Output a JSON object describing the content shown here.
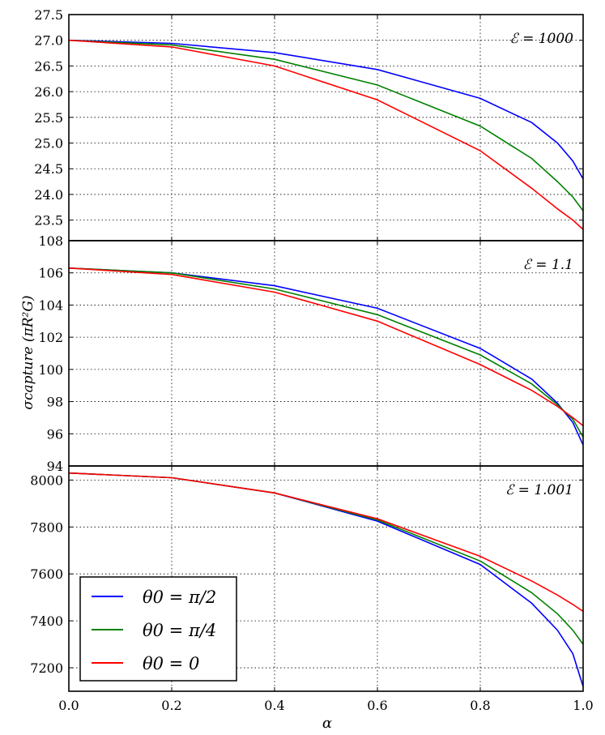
{
  "chart_data": {
    "type": "line",
    "ylabel": "σcapture (πR²G)",
    "xlabel": "α",
    "x_ticks": [
      "0.0",
      "0.2",
      "0.4",
      "0.6",
      "0.8",
      "1.0"
    ],
    "xlim": [
      0.0,
      1.0
    ],
    "grid": true,
    "legend": {
      "placement": "lower-left of bottom panel",
      "entries": [
        {
          "label": "θ0 = π/2",
          "color": "#0000ff"
        },
        {
          "label": "θ0 = π/4",
          "color": "#008000"
        },
        {
          "label": "θ0 = 0",
          "color": "#ff0000"
        }
      ]
    },
    "panels": [
      {
        "annotation": "ℰ = 1000",
        "ylim": [
          23.1,
          27.5
        ],
        "y_ticks": [
          "23.5",
          "24.0",
          "24.5",
          "25.0",
          "25.5",
          "26.0",
          "26.5",
          "27.0",
          "27.5"
        ],
        "series": [
          {
            "color": "#0000ff",
            "x": [
              0,
              0.2,
              0.4,
              0.6,
              0.8,
              0.9,
              0.95,
              0.98,
              1.0
            ],
            "y": [
              27.0,
              26.94,
              26.76,
              26.43,
              25.87,
              25.4,
              25.0,
              24.65,
              24.3
            ]
          },
          {
            "color": "#008000",
            "x": [
              0,
              0.2,
              0.4,
              0.6,
              0.8,
              0.9,
              0.95,
              0.98,
              1.0
            ],
            "y": [
              27.0,
              26.91,
              26.63,
              26.13,
              25.33,
              24.7,
              24.25,
              23.95,
              23.68
            ]
          },
          {
            "color": "#ff0000",
            "x": [
              0,
              0.2,
              0.4,
              0.6,
              0.8,
              0.9,
              0.95,
              0.98,
              1.0
            ],
            "y": [
              27.0,
              26.87,
              26.5,
              25.84,
              24.85,
              24.12,
              23.72,
              23.5,
              23.32
            ]
          }
        ]
      },
      {
        "annotation": "ℰ = 1.1",
        "ylim": [
          94,
          108
        ],
        "y_ticks": [
          "94",
          "96",
          "98",
          "100",
          "102",
          "104",
          "106",
          "108"
        ],
        "series": [
          {
            "color": "#0000ff",
            "x": [
              0,
              0.2,
              0.4,
              0.6,
              0.8,
              0.9,
              0.95,
              0.98,
              1.0
            ],
            "y": [
              106.3,
              106.0,
              105.2,
              103.8,
              101.3,
              99.4,
              97.9,
              96.7,
              95.3
            ]
          },
          {
            "color": "#008000",
            "x": [
              0,
              0.2,
              0.4,
              0.6,
              0.8,
              0.9,
              0.95,
              0.98,
              1.0
            ],
            "y": [
              106.3,
              106.0,
              105.0,
              103.4,
              100.9,
              99.1,
              97.8,
              96.9,
              95.8
            ]
          },
          {
            "color": "#ff0000",
            "x": [
              0,
              0.2,
              0.4,
              0.6,
              0.8,
              0.9,
              0.95,
              0.98,
              1.0
            ],
            "y": [
              106.3,
              105.9,
              104.8,
              103.0,
              100.3,
              98.7,
              97.7,
              97.0,
              96.5
            ]
          }
        ]
      },
      {
        "annotation": "ℰ = 1.001",
        "ylim": [
          7100,
          8060
        ],
        "y_ticks": [
          "7200",
          "7400",
          "7600",
          "7800",
          "8000"
        ],
        "series": [
          {
            "color": "#0000ff",
            "x": [
              0,
              0.2,
              0.4,
              0.6,
              0.8,
              0.9,
              0.95,
              0.98,
              1.0
            ],
            "y": [
              8030,
              8010,
              7945,
              7825,
              7640,
              7475,
              7360,
              7260,
              7120
            ]
          },
          {
            "color": "#008000",
            "x": [
              0,
              0.2,
              0.4,
              0.6,
              0.8,
              0.9,
              0.95,
              0.98,
              1.0
            ],
            "y": [
              8030,
              8010,
              7945,
              7830,
              7655,
              7520,
              7430,
              7360,
              7300
            ]
          },
          {
            "color": "#ff0000",
            "x": [
              0,
              0.2,
              0.4,
              0.6,
              0.8,
              0.9,
              0.95,
              0.98,
              1.0
            ],
            "y": [
              8030,
              8010,
              7945,
              7835,
              7675,
              7570,
              7510,
              7470,
              7440
            ]
          }
        ]
      }
    ]
  }
}
